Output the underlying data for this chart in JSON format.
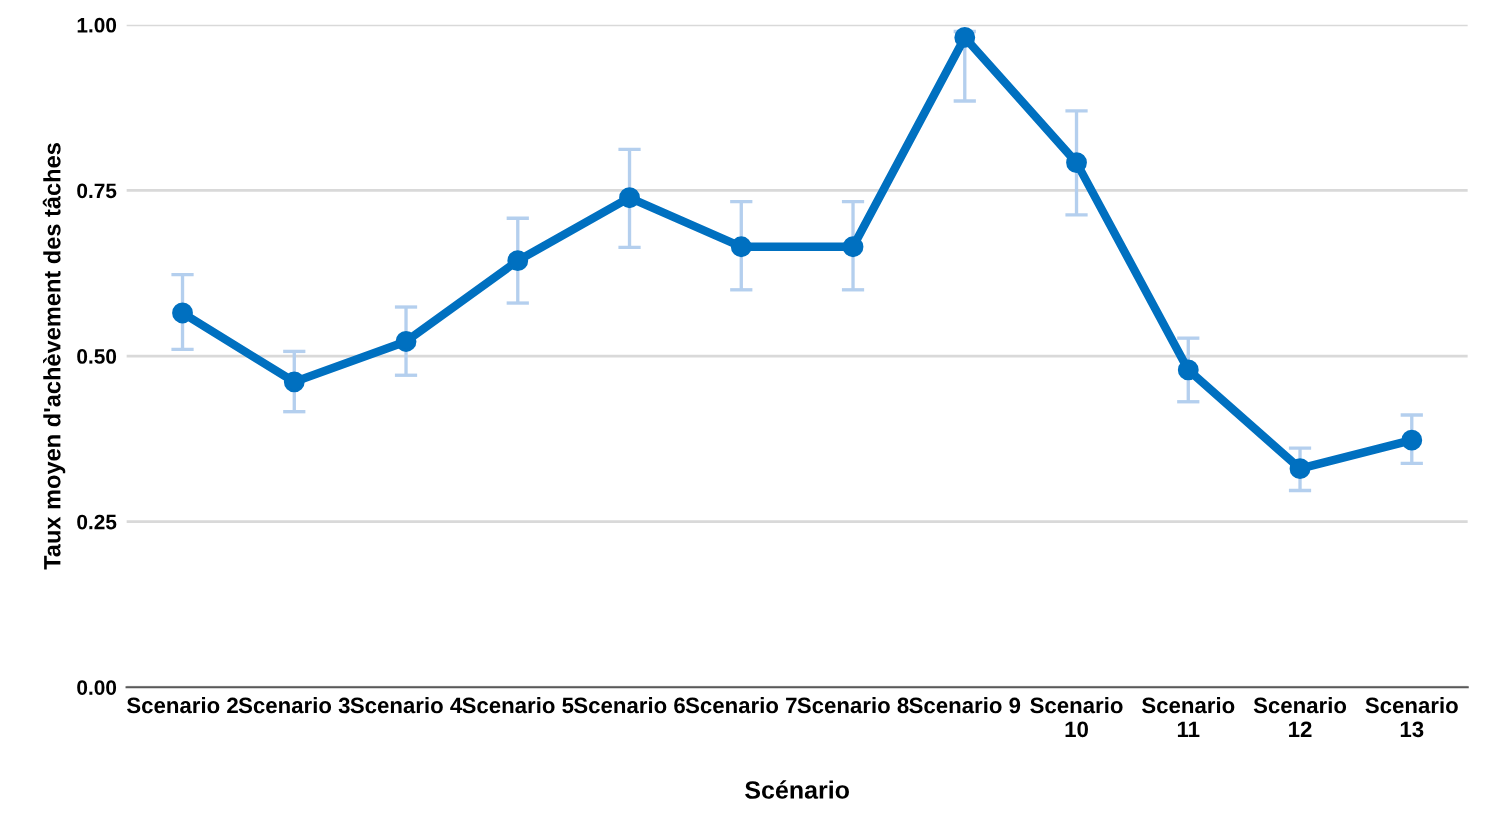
{
  "chart_data": {
    "type": "line",
    "xlabel": "Scénario",
    "ylabel": "Taux moyen d'achèvement des tâches",
    "categories": [
      "Scenario 2",
      "Scenario 3",
      "Scenario 4",
      "Scenario 5",
      "Scenario 6",
      "Scenario 7",
      "Scenario 8",
      "Scenario 9",
      "Scenario 10",
      "Scenario 11",
      "Scenario 12",
      "Scenario 13"
    ],
    "series": [
      {
        "color": "#0070c0",
        "values": [
          0.565,
          0.461,
          0.522,
          0.644,
          0.739,
          0.665,
          0.665,
          0.981,
          0.792,
          0.479,
          0.33,
          0.373
        ],
        "errors": [
          [
            0.51,
            0.623
          ],
          [
            0.416,
            0.507
          ],
          [
            0.471,
            0.574
          ],
          [
            0.58,
            0.708
          ],
          [
            0.664,
            0.812
          ],
          [
            0.6,
            0.733
          ],
          [
            0.6,
            0.733
          ],
          [
            0.885,
            0.99
          ],
          [
            0.713,
            0.87
          ],
          [
            0.431,
            0.527
          ],
          [
            0.297,
            0.361
          ],
          [
            0.338,
            0.411
          ]
        ]
      }
    ],
    "ylim": [
      0,
      1
    ],
    "yticks": [
      {
        "value": 0,
        "label": "0.00"
      },
      {
        "value": 0.25,
        "label": "0.25"
      },
      {
        "value": 0.5,
        "label": "0.50"
      },
      {
        "value": 0.75,
        "label": "0.75"
      },
      {
        "value": 1,
        "label": "1.00"
      }
    ],
    "grid": "y",
    "marker": "circle",
    "line_style": "solid"
  }
}
